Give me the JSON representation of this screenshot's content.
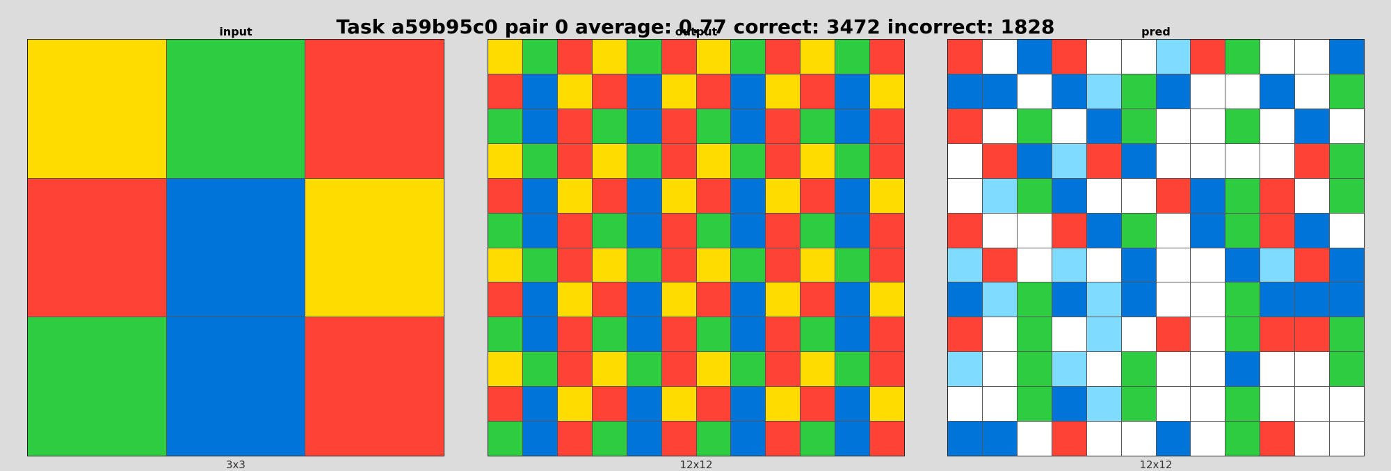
{
  "title": "Task a59b95c0 pair 0 average: 0.77 correct: 3472 incorrect: 1828",
  "palette": {
    "0": "#ffffff",
    "1": "#0074d9",
    "2": "#ff4136",
    "3": "#2ecc40",
    "4": "#ffdc00",
    "8": "#7fdbff"
  },
  "panels": [
    {
      "title": "input",
      "size_label": "3x3",
      "grid": [
        [
          4,
          3,
          2
        ],
        [
          2,
          1,
          4
        ],
        [
          3,
          1,
          2
        ]
      ]
    },
    {
      "title": "output",
      "size_label": "12x12",
      "grid": [
        [
          4,
          3,
          2,
          4,
          3,
          2,
          4,
          3,
          2,
          4,
          3,
          2
        ],
        [
          2,
          1,
          4,
          2,
          1,
          4,
          2,
          1,
          4,
          2,
          1,
          4
        ],
        [
          3,
          1,
          2,
          3,
          1,
          2,
          3,
          1,
          2,
          3,
          1,
          2
        ],
        [
          4,
          3,
          2,
          4,
          3,
          2,
          4,
          3,
          2,
          4,
          3,
          2
        ],
        [
          2,
          1,
          4,
          2,
          1,
          4,
          2,
          1,
          4,
          2,
          1,
          4
        ],
        [
          3,
          1,
          2,
          3,
          1,
          2,
          3,
          1,
          2,
          3,
          1,
          2
        ],
        [
          4,
          3,
          2,
          4,
          3,
          2,
          4,
          3,
          2,
          4,
          3,
          2
        ],
        [
          2,
          1,
          4,
          2,
          1,
          4,
          2,
          1,
          4,
          2,
          1,
          4
        ],
        [
          3,
          1,
          2,
          3,
          1,
          2,
          3,
          1,
          2,
          3,
          1,
          2
        ],
        [
          4,
          3,
          2,
          4,
          3,
          2,
          4,
          3,
          2,
          4,
          3,
          2
        ],
        [
          2,
          1,
          4,
          2,
          1,
          4,
          2,
          1,
          4,
          2,
          1,
          4
        ],
        [
          3,
          1,
          2,
          3,
          1,
          2,
          3,
          1,
          2,
          3,
          1,
          2
        ]
      ]
    },
    {
      "title": "pred",
      "size_label": "12x12",
      "grid": [
        [
          2,
          0,
          1,
          2,
          0,
          0,
          8,
          2,
          3,
          0,
          0,
          1
        ],
        [
          1,
          1,
          0,
          1,
          8,
          3,
          1,
          0,
          0,
          1,
          0,
          3
        ],
        [
          2,
          0,
          3,
          0,
          1,
          3,
          0,
          0,
          3,
          0,
          1,
          0
        ],
        [
          0,
          2,
          1,
          8,
          2,
          1,
          0,
          0,
          0,
          0,
          2,
          3
        ],
        [
          0,
          8,
          3,
          1,
          0,
          0,
          2,
          1,
          3,
          2,
          0,
          3
        ],
        [
          2,
          0,
          0,
          2,
          1,
          3,
          0,
          1,
          3,
          2,
          1,
          0
        ],
        [
          8,
          2,
          0,
          8,
          0,
          1,
          0,
          0,
          1,
          8,
          2,
          1
        ],
        [
          1,
          8,
          3,
          1,
          8,
          1,
          0,
          0,
          3,
          1,
          1,
          1
        ],
        [
          2,
          0,
          3,
          0,
          8,
          0,
          2,
          0,
          3,
          2,
          2,
          3
        ],
        [
          8,
          0,
          3,
          8,
          0,
          3,
          0,
          0,
          1,
          0,
          0,
          3
        ],
        [
          0,
          0,
          3,
          1,
          8,
          3,
          0,
          0,
          3,
          0,
          0,
          0
        ],
        [
          1,
          1,
          0,
          2,
          0,
          0,
          1,
          0,
          3,
          2,
          0,
          0
        ]
      ]
    }
  ]
}
